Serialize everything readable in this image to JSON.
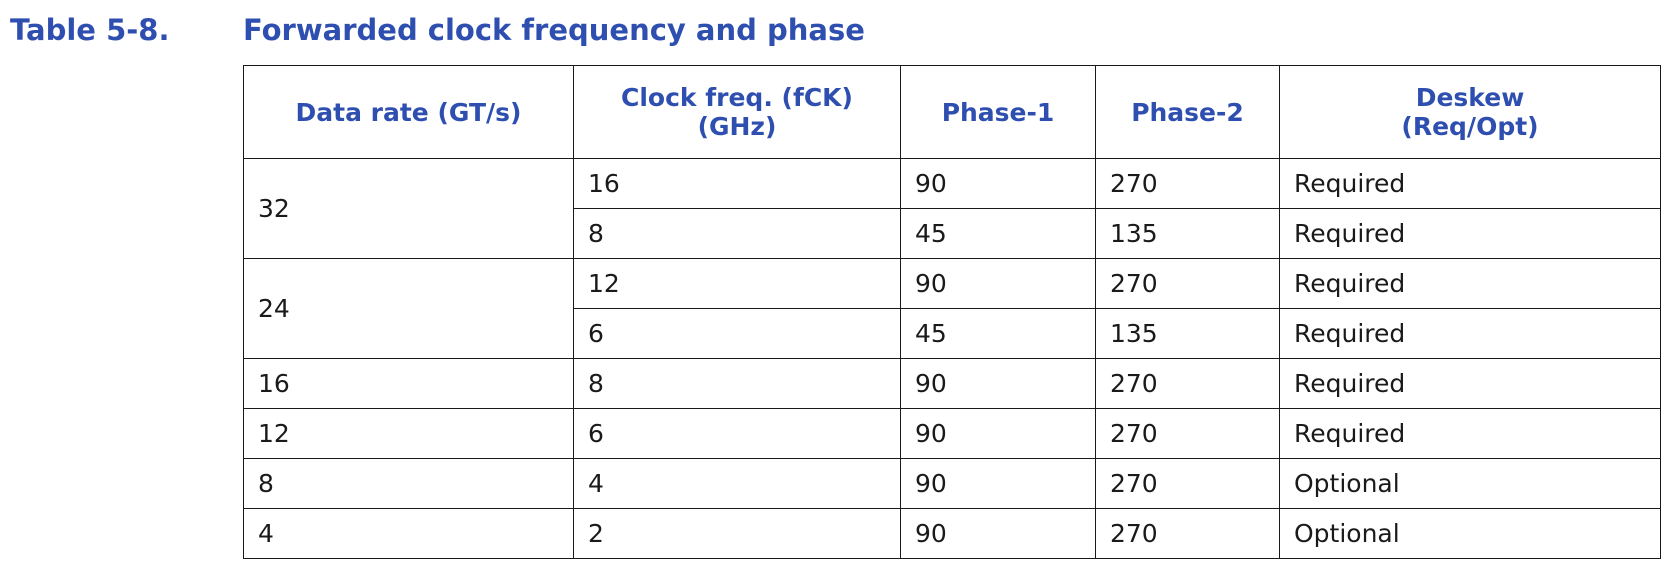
{
  "caption": {
    "number": "Table 5-8.",
    "title": "Forwarded clock frequency and phase"
  },
  "table": {
    "headers": {
      "data_rate": "Data rate (GT/s)",
      "clock_freq_line1": "Clock freq. (fCK)",
      "clock_freq_line2": "(GHz)",
      "phase1": "Phase-1",
      "phase2": "Phase-2",
      "deskew_line1": "Deskew",
      "deskew_line2": "(Req/Opt)"
    },
    "rows": [
      {
        "data_rate": "32",
        "clock_freq": "16",
        "phase1": "90",
        "phase2": "270",
        "deskew": "Required"
      },
      {
        "data_rate": "",
        "clock_freq": "8",
        "phase1": "45",
        "phase2": "135",
        "deskew": "Required"
      },
      {
        "data_rate": "24",
        "clock_freq": "12",
        "phase1": "90",
        "phase2": "270",
        "deskew": "Required"
      },
      {
        "data_rate": "",
        "clock_freq": "6",
        "phase1": "45",
        "phase2": "135",
        "deskew": "Required"
      },
      {
        "data_rate": "16",
        "clock_freq": "8",
        "phase1": "90",
        "phase2": "270",
        "deskew": "Required"
      },
      {
        "data_rate": "12",
        "clock_freq": "6",
        "phase1": "90",
        "phase2": "270",
        "deskew": "Required"
      },
      {
        "data_rate": "8",
        "clock_freq": "4",
        "phase1": "90",
        "phase2": "270",
        "deskew": "Optional"
      },
      {
        "data_rate": "4",
        "clock_freq": "2",
        "phase1": "90",
        "phase2": "270",
        "deskew": "Optional"
      }
    ]
  }
}
